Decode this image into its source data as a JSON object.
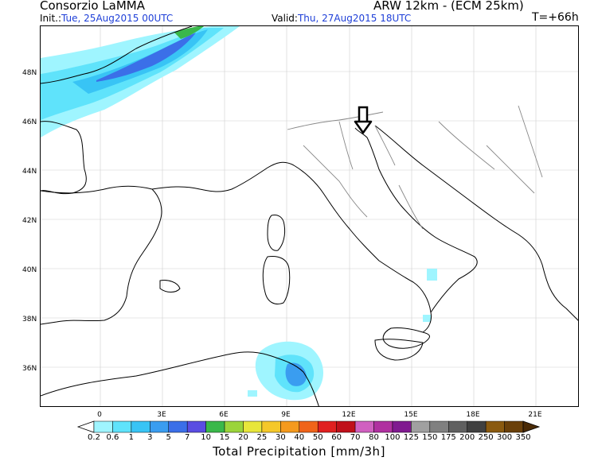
{
  "header": {
    "org": "Consorzio LaMMA",
    "model": "ARW 12km - (ECM 25km)",
    "init_label": "Init.:",
    "init_value": "Tue, 25Aug2015 00UTC",
    "valid_label": "Valid:",
    "valid_value": "Thu, 27Aug2015 18UTC",
    "forecast_step": "T=+66h"
  },
  "map": {
    "lat_labels": [
      "48N",
      "46N",
      "44N",
      "42N",
      "40N",
      "38N",
      "36N"
    ],
    "lon_labels": [
      "0",
      "3E",
      "6E",
      "9E",
      "12E",
      "15E",
      "18E",
      "21E"
    ],
    "marker": "arrow-down-icon"
  },
  "legend": {
    "title": "Total Precipitation [mm/3h]",
    "levels": [
      "0.2",
      "0.6",
      "1",
      "3",
      "5",
      "7",
      "10",
      "15",
      "20",
      "25",
      "30",
      "40",
      "50",
      "60",
      "70",
      "80",
      "100",
      "125",
      "150",
      "175",
      "200",
      "250",
      "300",
      "350"
    ],
    "colors": [
      "#ffffff",
      "#9ff5ff",
      "#5fe3fb",
      "#38c4f5",
      "#3a9df0",
      "#3b6fe8",
      "#5a4de2",
      "#3ab84a",
      "#9bd43a",
      "#e8e63a",
      "#f5c82a",
      "#f59a1e",
      "#f0641a",
      "#e02020",
      "#c0101a",
      "#d060c0",
      "#b030a0",
      "#801a90",
      "#a0a0a0",
      "#808080",
      "#606060",
      "#404040",
      "#8a5a10",
      "#6a400a",
      "#4a2a05"
    ]
  }
}
